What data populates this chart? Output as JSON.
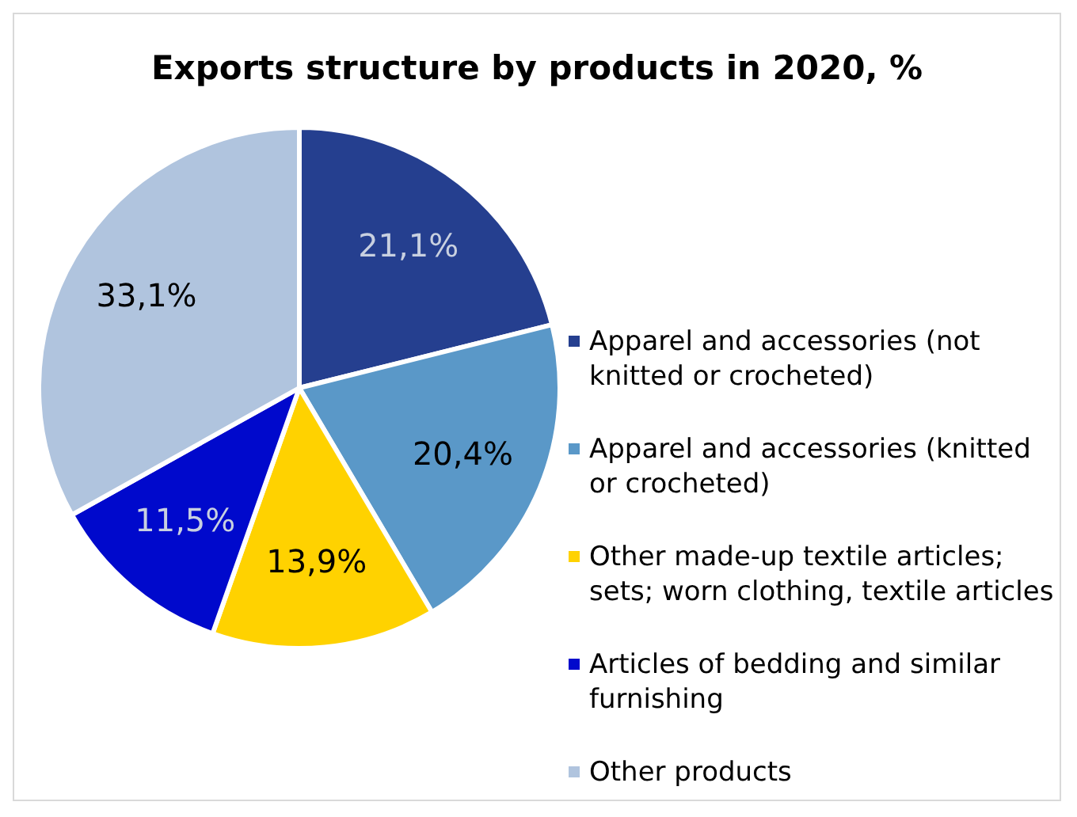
{
  "chart_data": {
    "type": "pie",
    "title": "Exports structure by products in 2020, %",
    "categories": [
      "Apparel and accessories (not knitted or crocheted)",
      "Apparel and accessories (knitted or crocheted)",
      "Other made-up textile articles; sets; worn clothing, textile articles",
      "Articles of bedding and similar furnishing",
      "Other products"
    ],
    "values": [
      21.1,
      20.4,
      13.9,
      11.5,
      33.1
    ],
    "colors": [
      "#253f8f",
      "#5a98c8",
      "#ffd200",
      "#0009cc",
      "#b0c4de"
    ],
    "value_labels": [
      "21,1%",
      "20,4%",
      "13,9%",
      "11,5%",
      "33,1%"
    ],
    "legend": "right"
  }
}
